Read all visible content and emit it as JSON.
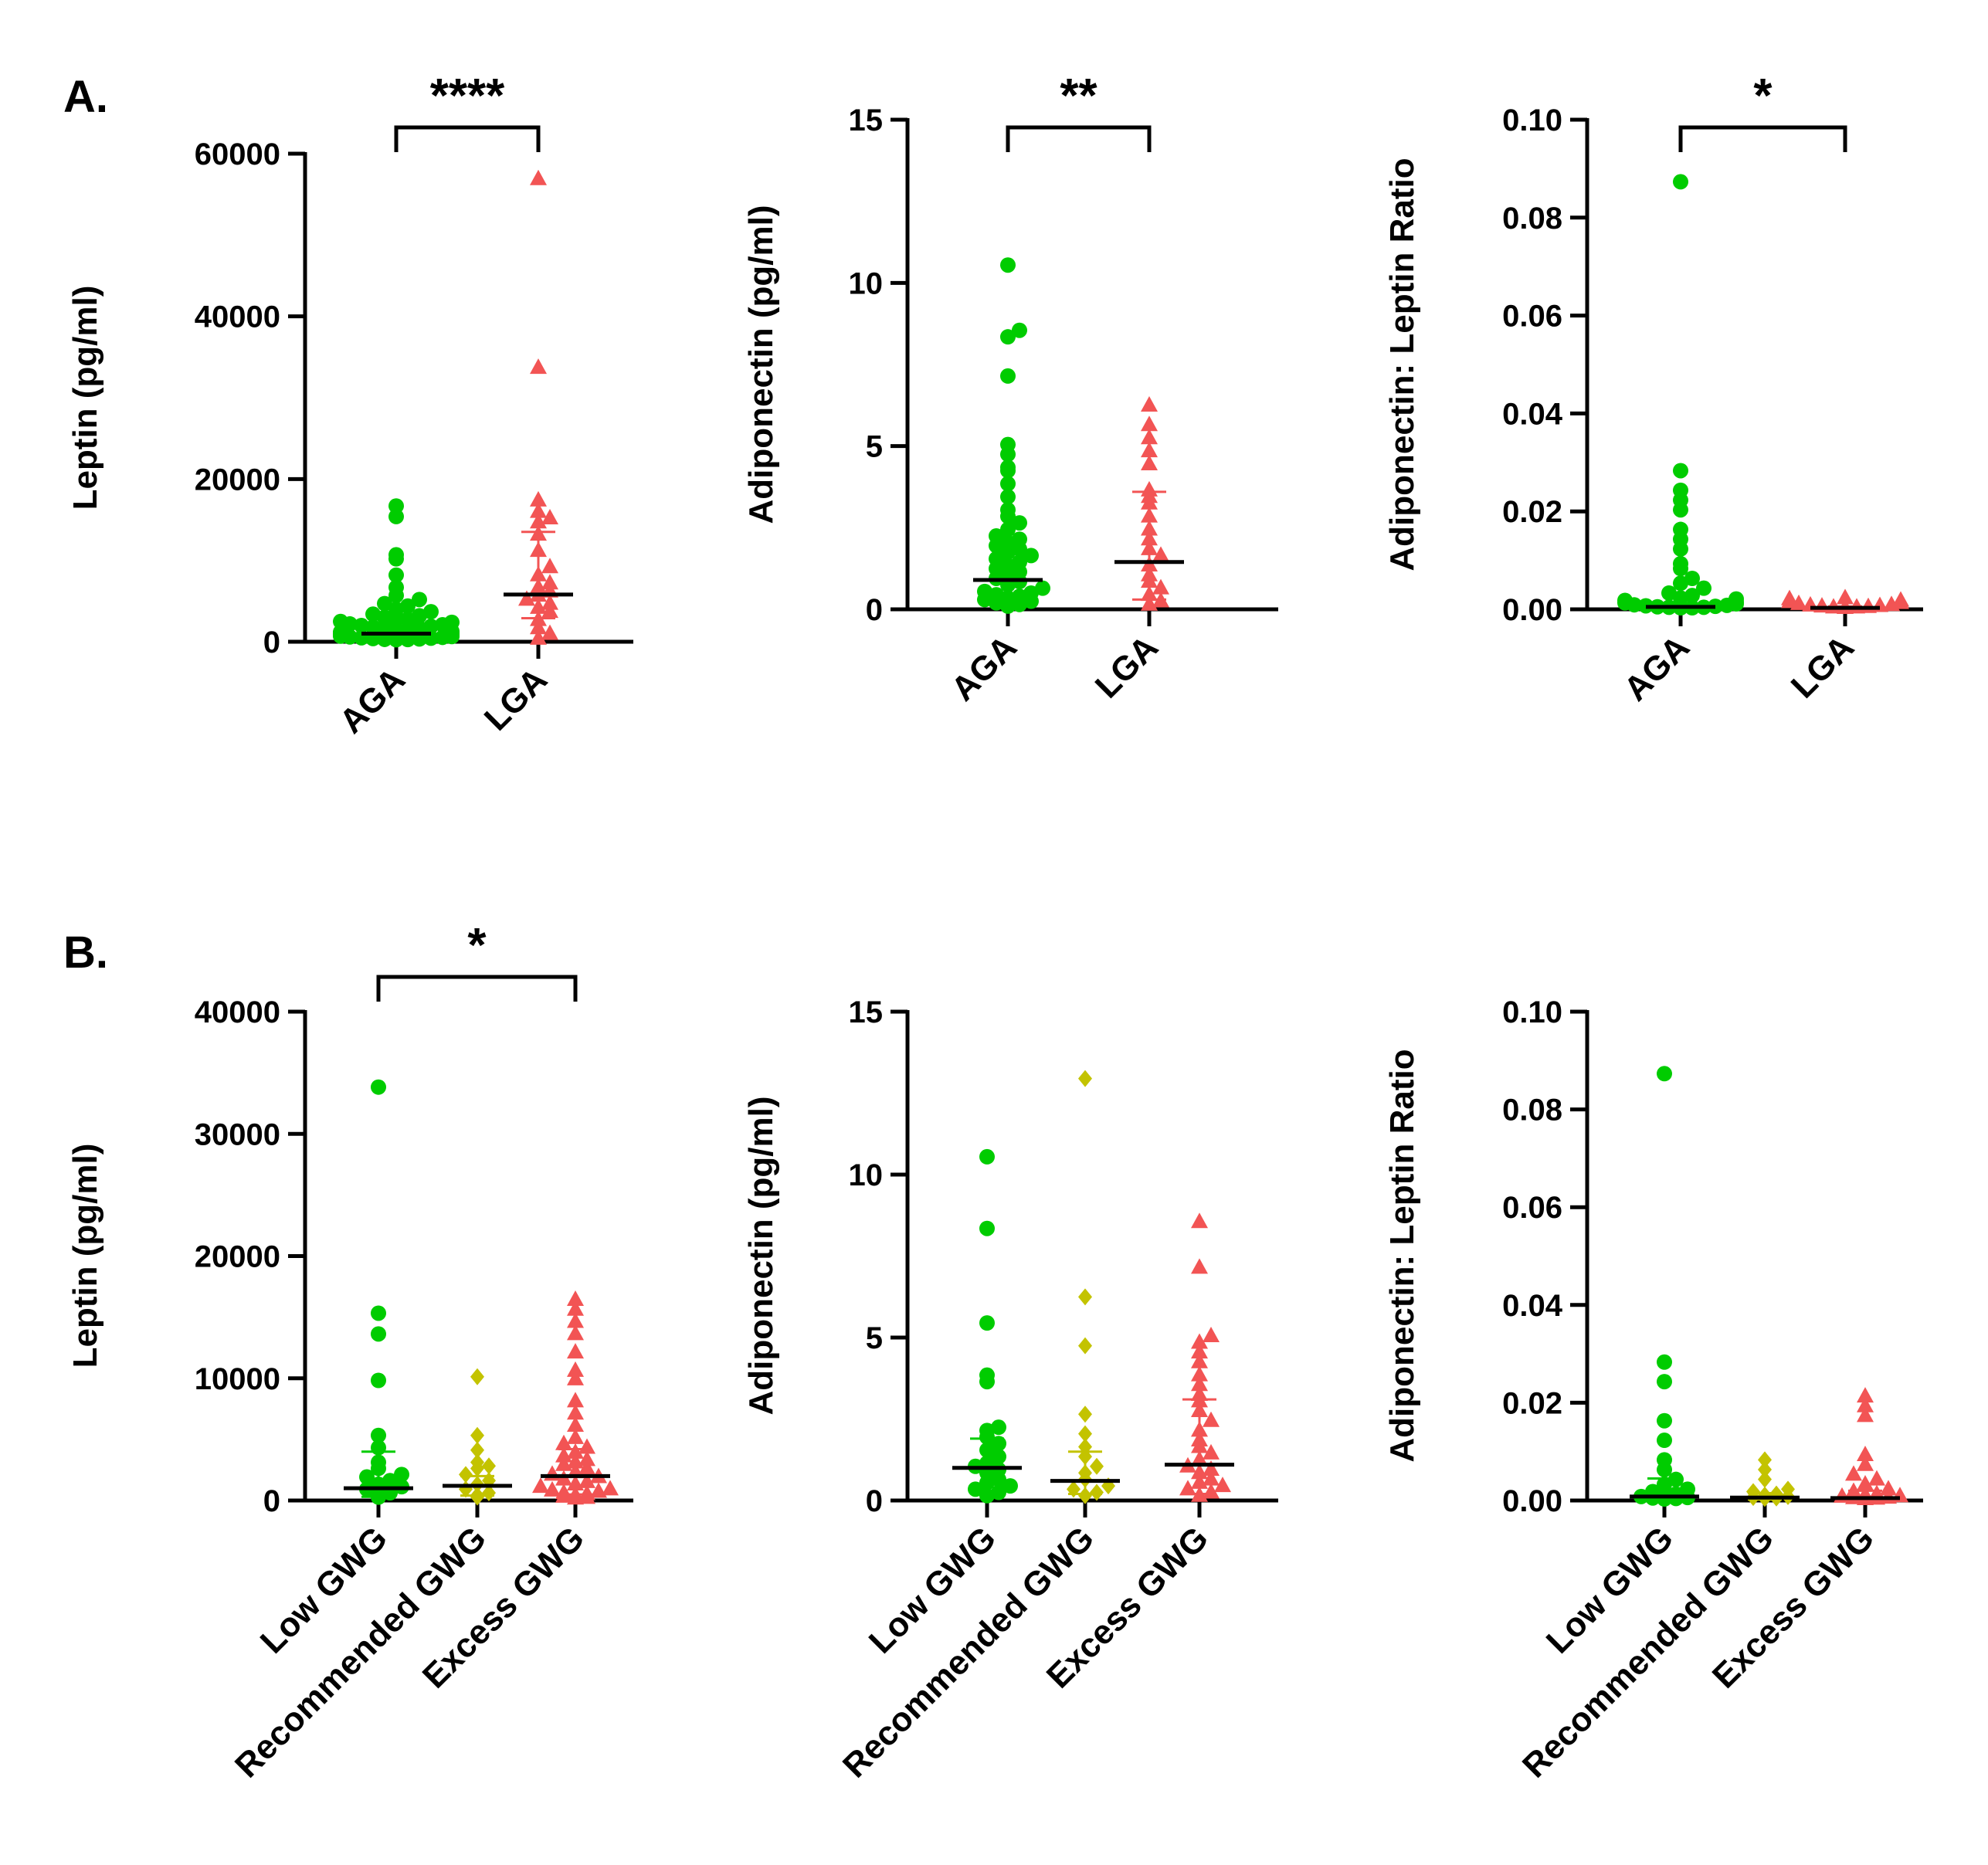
{
  "panels": {
    "A": "A.",
    "B.": "B.",
    "B": "B."
  },
  "colors": {
    "green": "#00cc00",
    "olive": "#c3c300",
    "red": "#f25454",
    "axis": "#000000"
  },
  "chart_data": [
    {
      "id": "A1",
      "type": "scatter",
      "panel": "A.",
      "ylabel": "Leptin (pg/ml)",
      "ylim": [
        0,
        60000
      ],
      "yticks": [
        0,
        20000,
        40000,
        60000
      ],
      "ytick_labels": [
        "0",
        "20000",
        "40000",
        "60000"
      ],
      "categories": [
        "AGA",
        "LGA"
      ],
      "series": [
        {
          "category": "AGA",
          "color": "#00cc00",
          "marker": "circle",
          "median": 1000,
          "iqr": [
            300,
            2700
          ],
          "values": [
            16500,
            15200,
            10500,
            10000,
            8000,
            6500,
            5500,
            5000,
            4500,
            4200,
            3800,
            3500,
            3200,
            3000,
            2800,
            2600,
            2500,
            2300,
            2200,
            2000,
            1900,
            1800,
            1700,
            1600,
            1500,
            1400,
            1300,
            1200,
            1100,
            1000,
            950,
            900,
            850,
            800,
            750,
            700,
            650,
            600,
            550,
            500,
            450,
            400,
            350,
            300,
            250,
            200,
            150,
            100,
            80,
            60
          ]
        },
        {
          "category": "LGA",
          "color": "#f25454",
          "marker": "triangle",
          "median": 5800,
          "iqr": [
            2900,
            13500
          ],
          "values": [
            56700,
            33500,
            17200,
            15800,
            15000,
            14500,
            13000,
            11000,
            9000,
            8000,
            7000,
            6500,
            6000,
            5500,
            5000,
            4500,
            4000,
            3500,
            2500,
            1500,
            800,
            200
          ]
        }
      ],
      "significance": {
        "groups": [
          "AGA",
          "LGA"
        ],
        "label": "****"
      }
    },
    {
      "id": "A2",
      "type": "scatter",
      "panel": "",
      "ylabel": "Adiponectin (pg/ml)",
      "ylim": [
        0,
        15
      ],
      "yticks": [
        0,
        5,
        10,
        15
      ],
      "ytick_labels": [
        "0",
        "5",
        "10",
        "15"
      ],
      "categories": [
        "AGA",
        "LGA"
      ],
      "series": [
        {
          "category": "AGA",
          "color": "#00cc00",
          "marker": "circle",
          "median": 0.9,
          "iqr": [
            0.3,
            2.0
          ],
          "values": [
            10.5,
            8.5,
            8.3,
            7.1,
            5.0,
            4.7,
            4.3,
            4.2,
            3.8,
            3.4,
            3.0,
            2.8,
            2.6,
            2.4,
            2.2,
            2.1,
            2.0,
            1.9,
            1.8,
            1.7,
            1.6,
            1.5,
            1.4,
            1.3,
            1.2,
            1.1,
            1.0,
            0.9,
            0.8,
            0.7,
            0.6,
            0.5,
            0.45,
            0.4,
            0.35,
            0.3,
            0.25,
            0.2,
            0.15,
            0.1,
            0.05
          ]
        },
        {
          "category": "LGA",
          "color": "#f25454",
          "marker": "triangle",
          "median": 1.45,
          "iqr": [
            0.3,
            3.6
          ],
          "values": [
            6.2,
            5.6,
            5.2,
            4.8,
            4.4,
            3.6,
            3.4,
            3.2,
            2.8,
            2.4,
            2.1,
            1.8,
            1.6,
            1.3,
            1.0,
            0.8,
            0.6,
            0.4,
            0.2,
            0.1
          ]
        }
      ],
      "significance": {
        "groups": [
          "AGA",
          "LGA"
        ],
        "label": "**"
      }
    },
    {
      "id": "A3",
      "type": "scatter",
      "panel": "",
      "ylabel": "Adiponectin:  Leptin Ratio",
      "ylim": [
        0,
        0.1
      ],
      "yticks": [
        0,
        0.02,
        0.04,
        0.06,
        0.08,
        0.1
      ],
      "ytick_labels": [
        "0.00",
        "0.02",
        "0.04",
        "0.06",
        "0.08",
        "0.10"
      ],
      "categories": [
        "AGA",
        "LGA"
      ],
      "series": [
        {
          "category": "AGA",
          "color": "#00cc00",
          "marker": "circle",
          "median": 0.0005,
          "iqr": [
            0.0002,
            0.0025
          ],
          "values": [
            0.087,
            0.028,
            0.024,
            0.022,
            0.02,
            0.016,
            0.014,
            0.012,
            0.009,
            0.008,
            0.006,
            0.005,
            0.004,
            0.003,
            0.0025,
            0.002,
            0.0018,
            0.0015,
            0.0012,
            0.001,
            0.0008,
            0.0006,
            0.0005,
            0.0004,
            0.0003,
            0.0002,
            0.0001,
            0.0001,
            0.0,
            0.0
          ]
        },
        {
          "category": "LGA",
          "color": "#f25454",
          "marker": "triangle",
          "median": 0.0003,
          "iqr": [
            0.0001,
            0.0006
          ],
          "values": [
            0.002,
            0.0018,
            0.0015,
            0.0012,
            0.001,
            0.0008,
            0.0006,
            0.0005,
            0.0004,
            0.0003,
            0.0002,
            0.0001,
            0.0001,
            0.0
          ]
        }
      ],
      "significance": {
        "groups": [
          "AGA",
          "LGA"
        ],
        "label": "*"
      }
    },
    {
      "id": "B1",
      "type": "scatter",
      "panel": "B.",
      "ylabel": "Leptin (pg/ml)",
      "ylim": [
        0,
        40000
      ],
      "yticks": [
        0,
        10000,
        20000,
        30000,
        40000
      ],
      "ytick_labels": [
        "0",
        "10000",
        "20000",
        "30000",
        "40000"
      ],
      "categories": [
        "Low GWG",
        "Recommended GWG",
        "Excess GWG"
      ],
      "series": [
        {
          "category": "Low GWG",
          "color": "#00cc00",
          "marker": "circle",
          "median": 1000,
          "iqr": [
            300,
            4000
          ],
          "values": [
            33700,
            15200,
            13500,
            9700,
            5200,
            4200,
            3000,
            2500,
            2000,
            1800,
            1500,
            1200,
            1000,
            800,
            500,
            300,
            150
          ]
        },
        {
          "category": "Recommended GWG",
          "color": "#c3c300",
          "marker": "diamond",
          "median": 1200,
          "iqr": [
            400,
            2000
          ],
          "values": [
            10000,
            5200,
            4000,
            3000,
            2700,
            2500,
            2000,
            1500,
            1200,
            800,
            500,
            300,
            150
          ]
        },
        {
          "category": "Excess GWG",
          "color": "#f25454",
          "marker": "triangle",
          "median": 2000,
          "iqr": [
            500,
            4200
          ],
          "values": [
            16300,
            15500,
            14500,
            13500,
            12000,
            10500,
            9800,
            8000,
            7000,
            6000,
            5000,
            4500,
            4200,
            3800,
            3500,
            3200,
            3000,
            2800,
            2500,
            2200,
            2000,
            1800,
            1600,
            1400,
            1200,
            1000,
            800,
            700,
            600,
            500,
            400,
            300,
            200,
            100,
            50
          ]
        }
      ],
      "significance": {
        "groups": [
          "Low GWG",
          "Excess GWG"
        ],
        "label": "*"
      }
    },
    {
      "id": "B2",
      "type": "scatter",
      "panel": "",
      "ylabel": "Adiponectin (pg/ml)",
      "ylim": [
        0,
        15
      ],
      "yticks": [
        0,
        5,
        10,
        15
      ],
      "ytick_labels": [
        "0",
        "5",
        "10",
        "15"
      ],
      "categories": [
        "Low GWG",
        "Recommended GWG",
        "Excess GWG"
      ],
      "series": [
        {
          "category": "Low GWG",
          "color": "#00cc00",
          "marker": "circle",
          "median": 1.0,
          "iqr": [
            0.3,
            1.9
          ],
          "values": [
            10.5,
            8.3,
            5.4,
            3.8,
            3.6,
            2.2,
            2.1,
            1.9,
            1.7,
            1.5,
            1.3,
            1.1,
            1.0,
            0.9,
            0.8,
            0.6,
            0.5,
            0.4,
            0.3,
            0.2,
            0.1
          ]
        },
        {
          "category": "Recommended GWG",
          "color": "#c3c300",
          "marker": "diamond",
          "median": 0.6,
          "iqr": [
            0.2,
            1.5
          ],
          "values": [
            12.9,
            6.2,
            4.7,
            2.6,
            2.0,
            1.6,
            1.3,
            1.0,
            0.8,
            0.6,
            0.4,
            0.3,
            0.2,
            0.1
          ]
        },
        {
          "category": "Excess GWG",
          "color": "#f25454",
          "marker": "triangle",
          "median": 1.1,
          "iqr": [
            0.2,
            3.1
          ],
          "values": [
            8.5,
            7.1,
            5.0,
            4.8,
            4.5,
            4.2,
            3.8,
            3.5,
            3.2,
            3.0,
            2.7,
            2.4,
            2.1,
            1.8,
            1.6,
            1.4,
            1.2,
            1.0,
            0.9,
            0.8,
            0.6,
            0.5,
            0.4,
            0.3,
            0.2,
            0.1
          ]
        }
      ],
      "significance": null
    },
    {
      "id": "B3",
      "type": "scatter",
      "panel": "",
      "ylabel": "Adiponectin:  Leptin Ratio",
      "ylim": [
        0,
        0.1
      ],
      "yticks": [
        0,
        0.02,
        0.04,
        0.06,
        0.08,
        0.1
      ],
      "ytick_labels": [
        "0.00",
        "0.02",
        "0.04",
        "0.06",
        "0.08",
        "0.10"
      ],
      "categories": [
        "Low GWG",
        "Recommended GWG",
        "Excess GWG"
      ],
      "series": [
        {
          "category": "Low GWG",
          "color": "#00cc00",
          "marker": "circle",
          "median": 0.0008,
          "iqr": [
            0.0002,
            0.0045
          ],
          "values": [
            0.087,
            0.028,
            0.024,
            0.016,
            0.012,
            0.008,
            0.006,
            0.004,
            0.003,
            0.002,
            0.0015,
            0.001,
            0.0008,
            0.0005,
            0.0003,
            0.0002,
            0.0001,
            0.0
          ]
        },
        {
          "category": "Recommended GWG",
          "color": "#c3c300",
          "marker": "diamond",
          "median": 0.0006,
          "iqr": [
            0.0002,
            0.0015
          ],
          "values": [
            0.008,
            0.006,
            0.004,
            0.002,
            0.0015,
            0.001,
            0.0008,
            0.0005,
            0.0003,
            0.0002,
            0.0001
          ]
        },
        {
          "category": "Excess GWG",
          "color": "#f25454",
          "marker": "triangle",
          "median": 0.0005,
          "iqr": [
            0.0001,
            0.002
          ],
          "values": [
            0.021,
            0.019,
            0.017,
            0.009,
            0.007,
            0.005,
            0.004,
            0.003,
            0.002,
            0.0015,
            0.001,
            0.0008,
            0.0006,
            0.0005,
            0.0003,
            0.0002,
            0.0001,
            0.0
          ]
        }
      ],
      "significance": null
    }
  ]
}
